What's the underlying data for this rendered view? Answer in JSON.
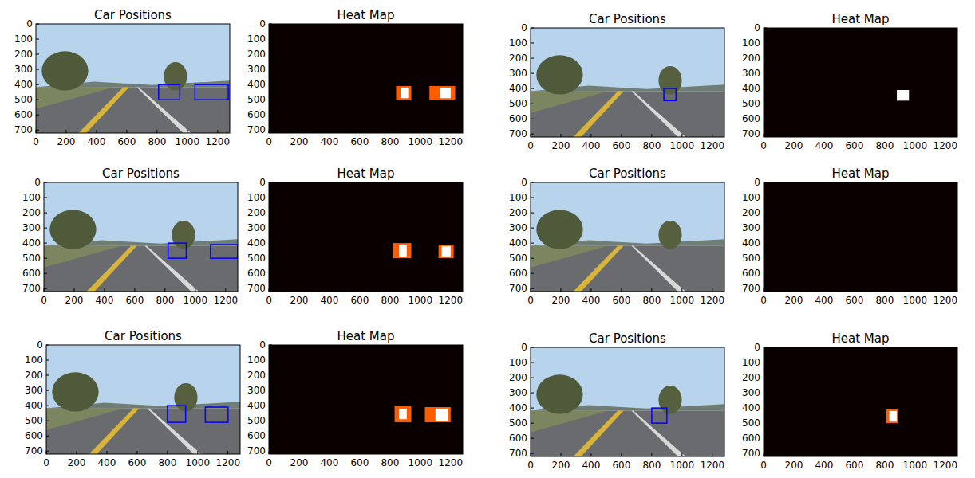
{
  "chart_data": [
    {
      "type": "image",
      "title": "Car Positions",
      "color": "#0000ff",
      "xlim": [
        0,
        1280
      ],
      "ylim": [
        720,
        0
      ],
      "xticks": [
        0,
        200,
        400,
        600,
        800,
        1000,
        1200
      ],
      "yticks": [
        0,
        100,
        200,
        300,
        400,
        500,
        600,
        700
      ],
      "boxes": [
        {
          "x": [
            810,
            950
          ],
          "y": [
            400,
            500
          ]
        },
        {
          "x": [
            1050,
            1270
          ],
          "y": [
            400,
            500
          ]
        }
      ]
    },
    {
      "type": "heatmap",
      "title": "Heat Map",
      "xlim": [
        0,
        1280
      ],
      "ylim": [
        720,
        0
      ],
      "xticks": [
        0,
        200,
        400,
        600,
        800,
        1000,
        1200
      ],
      "yticks": [
        0,
        100,
        200,
        300,
        400,
        500,
        600,
        700
      ],
      "cells": [
        {
          "x": [
            840,
            940
          ],
          "y": [
            410,
            500
          ],
          "value": 1
        },
        {
          "x": [
            870,
            920
          ],
          "y": [
            420,
            490
          ],
          "value": 2
        },
        {
          "x": [
            1060,
            1230
          ],
          "y": [
            410,
            500
          ],
          "value": 1
        },
        {
          "x": [
            1130,
            1200
          ],
          "y": [
            420,
            490
          ],
          "value": 2
        }
      ]
    },
    {
      "type": "image",
      "title": "Car Positions",
      "color": "#0000ff",
      "xlim": [
        0,
        1280
      ],
      "ylim": [
        720,
        0
      ],
      "xticks": [
        0,
        200,
        400,
        600,
        800,
        1000,
        1200
      ],
      "yticks": [
        0,
        100,
        200,
        300,
        400,
        500,
        600,
        700
      ],
      "boxes": [
        {
          "x": [
            880,
            960
          ],
          "y": [
            400,
            480
          ]
        }
      ]
    },
    {
      "type": "heatmap",
      "title": "Heat Map",
      "xlim": [
        0,
        1280
      ],
      "ylim": [
        720,
        0
      ],
      "xticks": [
        0,
        200,
        400,
        600,
        800,
        1000,
        1200
      ],
      "yticks": [
        0,
        100,
        200,
        300,
        400,
        500,
        600,
        700
      ],
      "cells": [
        {
          "x": [
            880,
            960
          ],
          "y": [
            410,
            480
          ],
          "value": 1
        }
      ]
    },
    {
      "type": "image",
      "title": "Car Positions",
      "color": "#0000ff",
      "xlim": [
        0,
        1280
      ],
      "ylim": [
        720,
        0
      ],
      "xticks": [
        0,
        200,
        400,
        600,
        800,
        1000,
        1200
      ],
      "yticks": [
        0,
        100,
        200,
        300,
        400,
        500,
        600,
        700
      ],
      "boxes": [
        {
          "x": [
            820,
            940
          ],
          "y": [
            400,
            500
          ]
        },
        {
          "x": [
            1100,
            1280
          ],
          "y": [
            410,
            500
          ]
        }
      ]
    },
    {
      "type": "heatmap",
      "title": "Heat Map",
      "xlim": [
        0,
        1280
      ],
      "ylim": [
        720,
        0
      ],
      "xticks": [
        0,
        200,
        400,
        600,
        800,
        1000,
        1200
      ],
      "yticks": [
        0,
        100,
        200,
        300,
        400,
        500,
        600,
        700
      ],
      "cells": [
        {
          "x": [
            820,
            940
          ],
          "y": [
            400,
            500
          ],
          "value": 1
        },
        {
          "x": [
            860,
            910
          ],
          "y": [
            410,
            490
          ],
          "value": 2
        },
        {
          "x": [
            1120,
            1220
          ],
          "y": [
            410,
            500
          ],
          "value": 1
        },
        {
          "x": [
            1140,
            1200
          ],
          "y": [
            420,
            490
          ],
          "value": 2
        }
      ]
    },
    {
      "type": "image",
      "title": "Car Positions",
      "color": "#0000ff",
      "xlim": [
        0,
        1280
      ],
      "ylim": [
        720,
        0
      ],
      "xticks": [
        0,
        200,
        400,
        600,
        800,
        1000,
        1200
      ],
      "yticks": [
        0,
        100,
        200,
        300,
        400,
        500,
        600,
        700
      ],
      "boxes": []
    },
    {
      "type": "heatmap",
      "title": "Heat Map",
      "xlim": [
        0,
        1280
      ],
      "ylim": [
        720,
        0
      ],
      "xticks": [
        0,
        200,
        400,
        600,
        800,
        1000,
        1200
      ],
      "yticks": [
        0,
        100,
        200,
        300,
        400,
        500,
        600,
        700
      ],
      "cells": []
    },
    {
      "type": "image",
      "title": "Car Positions",
      "color": "#0000ff",
      "xlim": [
        0,
        1280
      ],
      "ylim": [
        720,
        0
      ],
      "xticks": [
        0,
        200,
        400,
        600,
        800,
        1000,
        1200
      ],
      "yticks": [
        0,
        100,
        200,
        300,
        400,
        500,
        600,
        700
      ],
      "boxes": [
        {
          "x": [
            800,
            920
          ],
          "y": [
            400,
            510
          ]
        },
        {
          "x": [
            1050,
            1200
          ],
          "y": [
            410,
            510
          ]
        }
      ]
    },
    {
      "type": "heatmap",
      "title": "Heat Map",
      "xlim": [
        0,
        1280
      ],
      "ylim": [
        720,
        0
      ],
      "xticks": [
        0,
        200,
        400,
        600,
        800,
        1000,
        1200
      ],
      "yticks": [
        0,
        100,
        200,
        300,
        400,
        500,
        600,
        700
      ],
      "cells": [
        {
          "x": [
            830,
            940
          ],
          "y": [
            400,
            510
          ],
          "value": 1
        },
        {
          "x": [
            860,
            910
          ],
          "y": [
            420,
            490
          ],
          "value": 2
        },
        {
          "x": [
            1030,
            1200
          ],
          "y": [
            410,
            510
          ],
          "value": 1
        },
        {
          "x": [
            1100,
            1180
          ],
          "y": [
            420,
            500
          ],
          "value": 2
        }
      ]
    },
    {
      "type": "image",
      "title": "Car Positions",
      "color": "#0000ff",
      "xlim": [
        0,
        1280
      ],
      "ylim": [
        720,
        0
      ],
      "xticks": [
        0,
        200,
        400,
        600,
        800,
        1000,
        1200
      ],
      "yticks": [
        0,
        100,
        200,
        300,
        400,
        500,
        600,
        700
      ],
      "boxes": [
        {
          "x": [
            800,
            900
          ],
          "y": [
            400,
            500
          ]
        }
      ]
    },
    {
      "type": "heatmap",
      "title": "Heat Map",
      "xlim": [
        0,
        1280
      ],
      "ylim": [
        720,
        0
      ],
      "xticks": [
        0,
        200,
        400,
        600,
        800,
        1000,
        1200
      ],
      "yticks": [
        0,
        100,
        200,
        300,
        400,
        500,
        600,
        700
      ],
      "cells": [
        {
          "x": [
            810,
            890
          ],
          "y": [
            410,
            500
          ],
          "value": 1
        },
        {
          "x": [
            830,
            880
          ],
          "y": [
            420,
            490
          ],
          "value": 2
        }
      ]
    }
  ]
}
